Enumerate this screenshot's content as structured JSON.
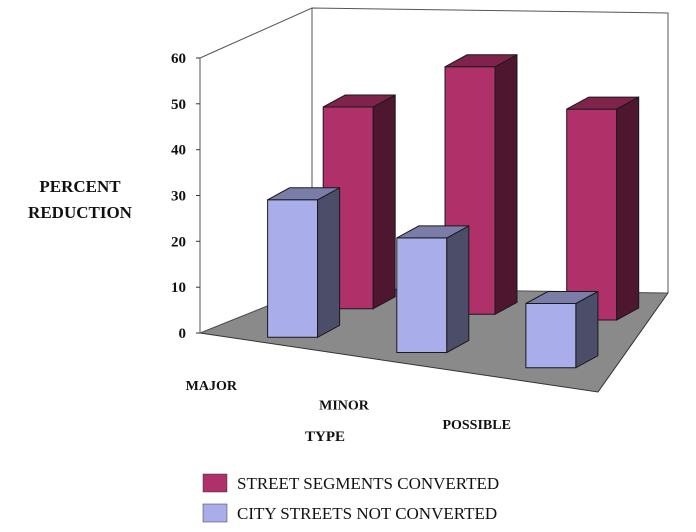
{
  "chart_data": {
    "type": "bar",
    "title": "",
    "xlabel": "TYPE",
    "ylabel": [
      "PERCENT",
      "REDUCTION"
    ],
    "categories": [
      "MAJOR",
      "MINOR",
      "POSSIBLE"
    ],
    "ylim": [
      0,
      60
    ],
    "yticks": [
      0,
      10,
      20,
      30,
      40,
      50,
      60
    ],
    "grid": false,
    "legend_position": "bottom",
    "series": [
      {
        "name": "STREET SEGMENTS CONVERTED",
        "values": [
          44,
          54,
          46
        ],
        "color": "#b0306a"
      },
      {
        "name": "CITY STREETS NOT CONVERTED",
        "values": [
          30,
          25,
          14
        ],
        "color": "#a9aeea"
      }
    ],
    "floor_color": "#8a8a8a"
  }
}
